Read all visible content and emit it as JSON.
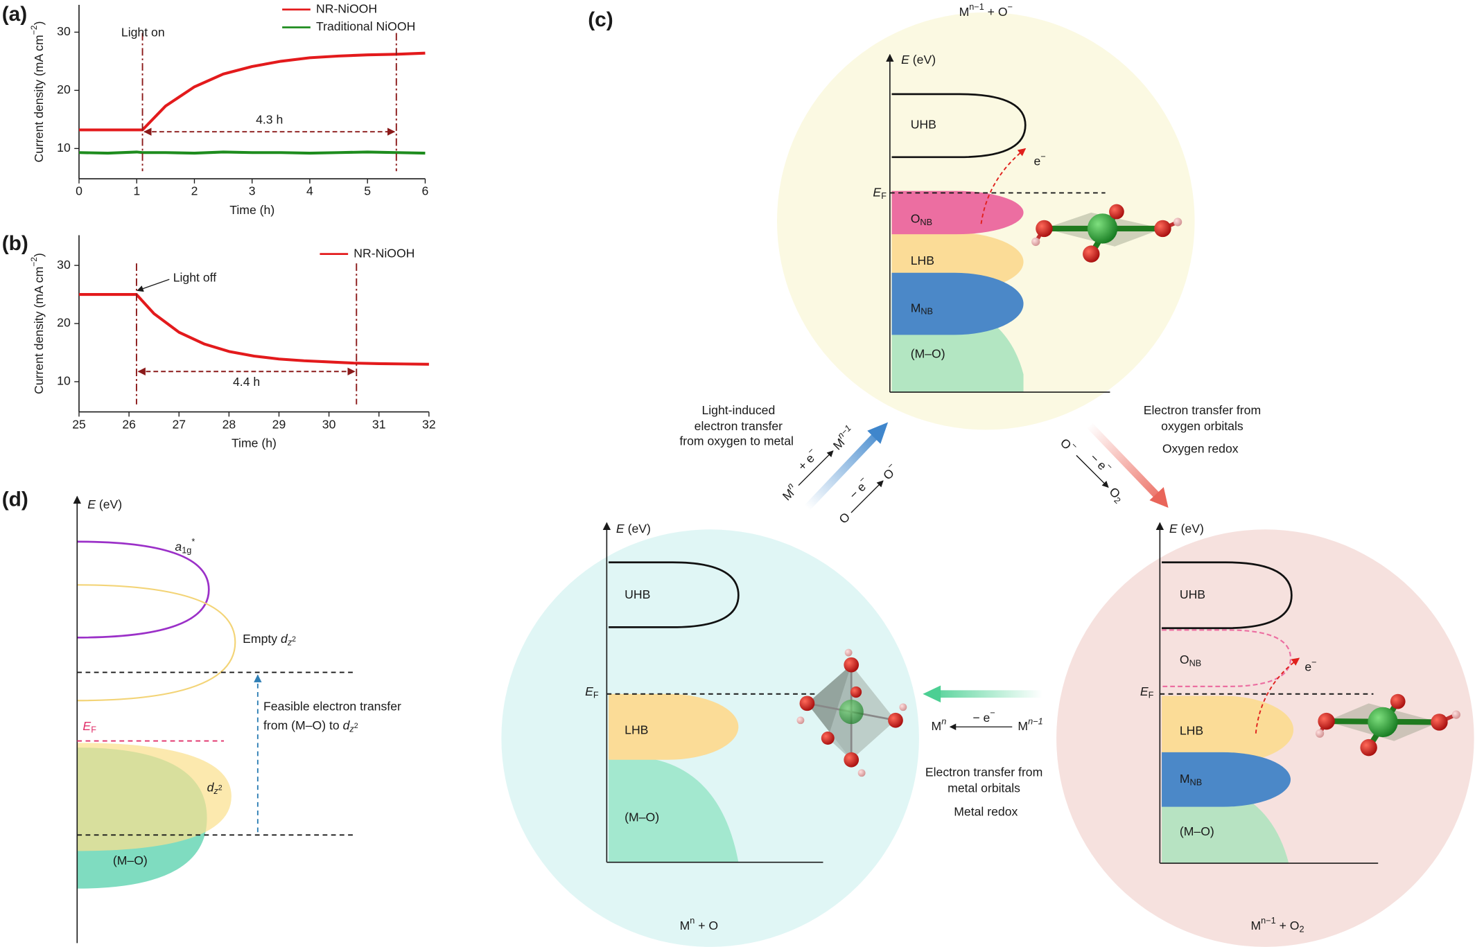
{
  "chart_data": [
    {
      "type": "line",
      "label": "(a)",
      "xlabel": "Time (h)",
      "ylabel": [
        "Current density (mA cm",
        "−2",
        ")"
      ],
      "x": [
        0,
        0.5,
        1,
        1.1,
        1.5,
        2,
        2.5,
        3,
        3.5,
        4,
        4.5,
        5,
        5.5,
        6
      ],
      "series": [
        {
          "name": "NR-NiOOH",
          "color": "#e31a1c",
          "values": [
            13.2,
            13.2,
            13.2,
            13.2,
            17.3,
            20.6,
            22.8,
            24.1,
            25.0,
            25.6,
            25.9,
            26.1,
            26.2,
            26.4
          ]
        },
        {
          "name": "Traditional NiOOH",
          "color": "#1e8c1e",
          "values": [
            9.3,
            9.2,
            9.4,
            9.3,
            9.3,
            9.2,
            9.4,
            9.3,
            9.3,
            9.2,
            9.3,
            9.4,
            9.3,
            9.2
          ]
        }
      ],
      "xlim": [
        0,
        6
      ],
      "xticks": [
        0,
        1,
        2,
        3,
        4,
        5,
        6
      ],
      "ylim": [
        4.8,
        34.7
      ],
      "yticks": [
        10,
        20,
        30
      ],
      "vlines": [
        1.1,
        5.5
      ],
      "annotations": [
        "Light on",
        "4.3 h"
      ]
    },
    {
      "type": "line",
      "label": "(b)",
      "xlabel": "Time (h)",
      "ylabel": [
        "Current density (mA cm",
        "−2",
        ")"
      ],
      "x": [
        25,
        25.5,
        26,
        26.15,
        26.5,
        27,
        27.5,
        28,
        28.5,
        29,
        29.5,
        30,
        30.5,
        31,
        31.5,
        32
      ],
      "series": [
        {
          "name": "NR-NiOOH",
          "color": "#e31a1c",
          "values": [
            25,
            25,
            25,
            25,
            21.7,
            18.5,
            16.5,
            15.2,
            14.4,
            13.9,
            13.6,
            13.4,
            13.2,
            13.1,
            13.05,
            13.0
          ]
        }
      ],
      "xlim": [
        25,
        32
      ],
      "xticks": [
        25,
        26,
        27,
        28,
        29,
        30,
        31,
        32
      ],
      "ylim": [
        4.8,
        35.2
      ],
      "yticks": [
        10,
        20,
        30
      ],
      "vlines": [
        26.15,
        30.55
      ],
      "annotations": [
        "Light off",
        "4.4 h"
      ]
    }
  ],
  "panel_c": {
    "label": "(c)",
    "top": {
      "caption": [
        "M",
        "n−1",
        " + O",
        "−"
      ],
      "axis": [
        "E",
        " (eV)"
      ],
      "uhb": "UHB",
      "ef": [
        "E",
        "F"
      ],
      "onb": [
        "O",
        "NB"
      ],
      "lhb": "LHB",
      "mnb": [
        "M",
        "NB"
      ],
      "mo": "(M–O)",
      "electron": [
        "e",
        "−"
      ]
    },
    "left": {
      "caption": [
        "M",
        "n",
        " + O"
      ],
      "axis": [
        "E",
        " (eV)"
      ],
      "uhb": "UHB",
      "ef": [
        "E",
        "F"
      ],
      "lhb": "LHB",
      "mo": "(M–O)"
    },
    "right": {
      "caption": [
        "M",
        "n−1",
        " + O",
        "2"
      ],
      "axis": [
        "E",
        " (eV)"
      ],
      "uhb": "UHB",
      "onb": [
        "O",
        "NB"
      ],
      "electron": [
        "e",
        "−"
      ],
      "ef": [
        "E",
        "F"
      ],
      "lhb": "LHB",
      "mnb": [
        "M",
        "NB"
      ],
      "mo": "(M–O)"
    },
    "light_transfer": {
      "text": [
        "Light-induced",
        "electron transfer",
        "from oxygen to metal"
      ],
      "metal_reaction": {
        "from": [
          "M",
          "n"
        ],
        "over": [
          "+ e",
          "−"
        ],
        "to": [
          "M",
          "n−1"
        ]
      },
      "oxygen_reaction": {
        "from": "O",
        "over": [
          "− e",
          "−"
        ],
        "to": [
          "O",
          "−"
        ]
      }
    },
    "oxygen_redox": {
      "text": [
        "Electron transfer from",
        "oxygen orbitals"
      ],
      "title": "Oxygen redox",
      "reaction": {
        "from": [
          "O",
          "−"
        ],
        "over": [
          "− e",
          "−"
        ],
        "to": [
          "O",
          "2"
        ]
      }
    },
    "metal_redox": {
      "text": [
        "Electron transfer from",
        "metal orbitals"
      ],
      "title": "Metal redox",
      "reaction": {
        "to": [
          "M",
          "n"
        ],
        "over": [
          "− e",
          "−"
        ],
        "from": [
          "M",
          "n−1"
        ]
      }
    }
  },
  "panel_d": {
    "label": "(d)",
    "axis": [
      "E",
      " (eV)"
    ],
    "a1g": [
      "a",
      "1g",
      "*"
    ],
    "empty": [
      "Empty ",
      "d",
      "z",
      "2"
    ],
    "transfer": [
      "Feasible electron transfer",
      "from (M–O) to ",
      "d",
      "z",
      "2"
    ],
    "ef": [
      "E",
      "F"
    ],
    "dz2": [
      "d",
      "z",
      "2"
    ],
    "mo": "(M–O)"
  }
}
